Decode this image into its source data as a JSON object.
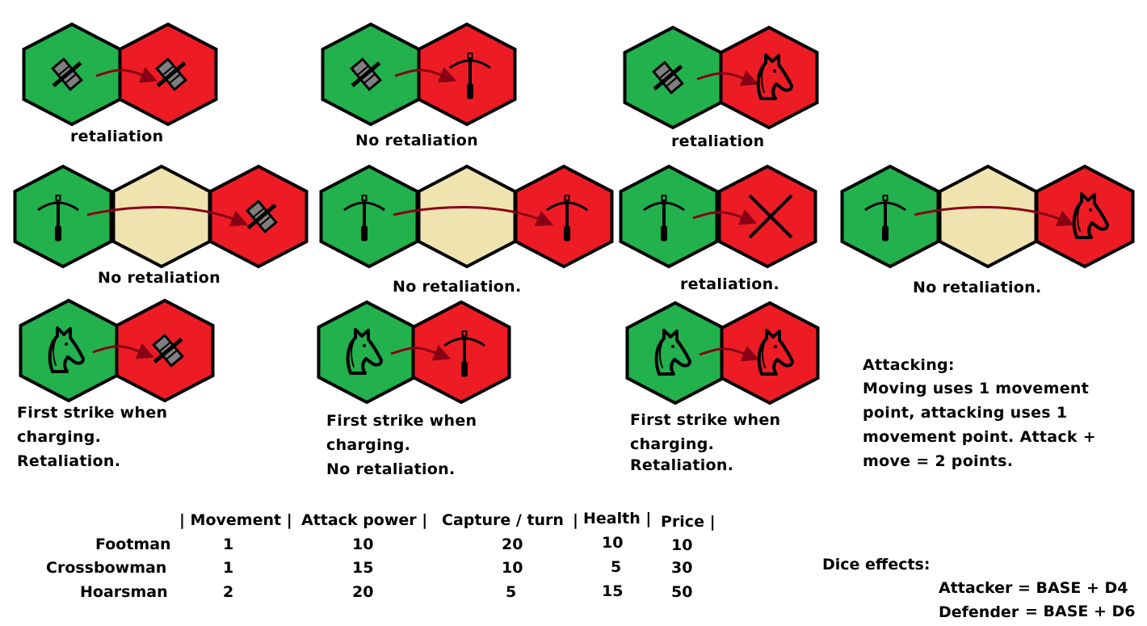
{
  "colors": {
    "attacker": "#22b14c",
    "defender": "#ed1c24",
    "empty": "#efe4b0",
    "arrow": "#880015",
    "outline": "#000000",
    "shield": "#7f7f7f"
  },
  "diagrams": [
    {
      "id": "footman-vs-footman",
      "units": [
        "footman",
        "footman"
      ],
      "caption": "retaliation"
    },
    {
      "id": "footman-vs-crossbowman",
      "units": [
        "footman",
        "crossbowman"
      ],
      "caption": "No retaliation"
    },
    {
      "id": "footman-vs-hoarsman",
      "units": [
        "footman",
        "hoarsman"
      ],
      "caption": "retaliation"
    },
    {
      "id": "crossbowman-ranged-vs-footman",
      "units": [
        "crossbowman",
        "empty",
        "footman"
      ],
      "caption": "No retaliation"
    },
    {
      "id": "crossbowman-ranged-vs-crossbowman",
      "units": [
        "crossbowman",
        "empty",
        "crossbowman"
      ],
      "caption": "No retaliation."
    },
    {
      "id": "crossbowman-adjacent",
      "units": [
        "crossbowman",
        "cross"
      ],
      "caption": "retaliation."
    },
    {
      "id": "crossbowman-ranged-vs-hoarsman",
      "units": [
        "crossbowman",
        "empty",
        "hoarsman"
      ],
      "caption": "No retaliation."
    },
    {
      "id": "hoarsman-vs-footman",
      "units": [
        "hoarsman",
        "footman"
      ],
      "caption": [
        "First strike when",
        "charging.",
        "Retaliation."
      ]
    },
    {
      "id": "hoarsman-vs-crossbowman",
      "units": [
        "hoarsman",
        "crossbowman"
      ],
      "caption": [
        "First strike when",
        "charging.",
        "No retaliation."
      ]
    },
    {
      "id": "hoarsman-vs-hoarsman",
      "units": [
        "hoarsman",
        "hoarsman"
      ],
      "caption": [
        "First strike when",
        "charging.",
        "Retaliation."
      ]
    }
  ],
  "attacking": {
    "title": "Attacking:",
    "lines": [
      "Moving uses 1 movement",
      "point, attacking uses 1",
      "movement point. Attack +",
      "move = 2 points."
    ]
  },
  "stats_table": {
    "headers": [
      "| Movement |",
      "Attack power |",
      "Capture / turn",
      "|",
      "Health |",
      "Price |"
    ],
    "rows": [
      {
        "name": "Footman",
        "movement": "1",
        "attack": "10",
        "capture": "20",
        "health": "10",
        "price": "10"
      },
      {
        "name": "Crossbowman",
        "movement": "1",
        "attack": "15",
        "capture": "10",
        "health": "5",
        "price": "30"
      },
      {
        "name": "Hoarsman",
        "movement": "2",
        "attack": "20",
        "capture": "5",
        "health": "15",
        "price": "50"
      }
    ]
  },
  "dice": {
    "title": "Dice effects:",
    "attacker": "Attacker = BASE + D4",
    "defender_label": "Defender",
    "defender_rest": "= BASE + D6"
  }
}
